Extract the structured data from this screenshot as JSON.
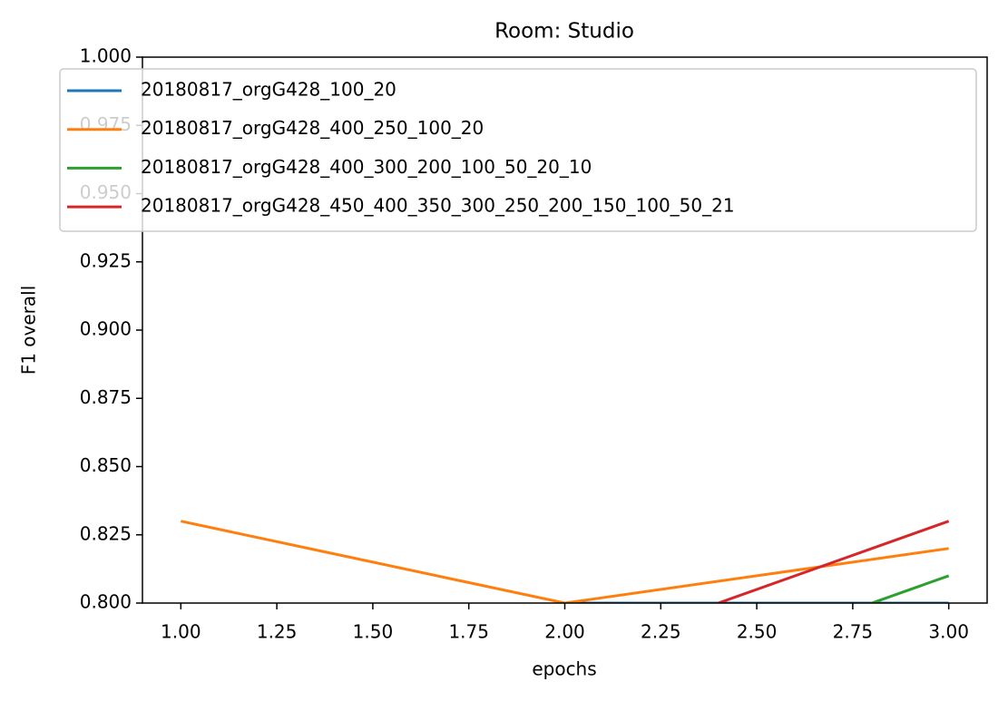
{
  "chart_data": {
    "type": "line",
    "title": "Room: Studio",
    "xlabel": "epochs",
    "ylabel": "F1 overall",
    "x": [
      1,
      2,
      3
    ],
    "series": [
      {
        "name": "20180817_orgG428_100_20",
        "color": "#1f77b4",
        "values": [
          null,
          0.8,
          0.8
        ]
      },
      {
        "name": "20180817_orgG428_400_250_100_20",
        "color": "#ff7f0e",
        "values": [
          0.83,
          0.8,
          0.82
        ]
      },
      {
        "name": "20180817_orgG428_400_300_200_100_50_20_10",
        "color": "#2ca02c",
        "values": [
          null,
          0.76,
          0.81
        ]
      },
      {
        "name": "20180817_orgG428_450_400_350_300_250_200_150_100_50_21",
        "color": "#d62728",
        "values": [
          null,
          0.78,
          0.83
        ]
      }
    ],
    "xlim": [
      0.9,
      3.1
    ],
    "xticks": [
      {
        "value": 1,
        "label": "1.00"
      },
      {
        "value": 1.25,
        "label": "1.25"
      },
      {
        "value": 1.5,
        "label": "1.50"
      },
      {
        "value": 1.75,
        "label": "1.75"
      },
      {
        "value": 2,
        "label": "2.00"
      },
      {
        "value": 2.25,
        "label": "2.25"
      },
      {
        "value": 2.5,
        "label": "2.50"
      },
      {
        "value": 2.75,
        "label": "2.75"
      },
      {
        "value": 3,
        "label": "3.00"
      }
    ],
    "ylim": [
      0.8,
      1.0
    ],
    "yticks": [
      {
        "value": 0.8,
        "label": "0.800"
      },
      {
        "value": 0.825,
        "label": "0.825"
      },
      {
        "value": 0.85,
        "label": "0.850"
      },
      {
        "value": 0.875,
        "label": "0.875"
      },
      {
        "value": 0.9,
        "label": "0.900"
      },
      {
        "value": 0.925,
        "label": "0.925"
      },
      {
        "value": 0.95,
        "label": "0.950"
      },
      {
        "value": 0.975,
        "label": "0.975"
      },
      {
        "value": 1.0,
        "label": "1.000"
      }
    ],
    "legend": "upper left"
  }
}
